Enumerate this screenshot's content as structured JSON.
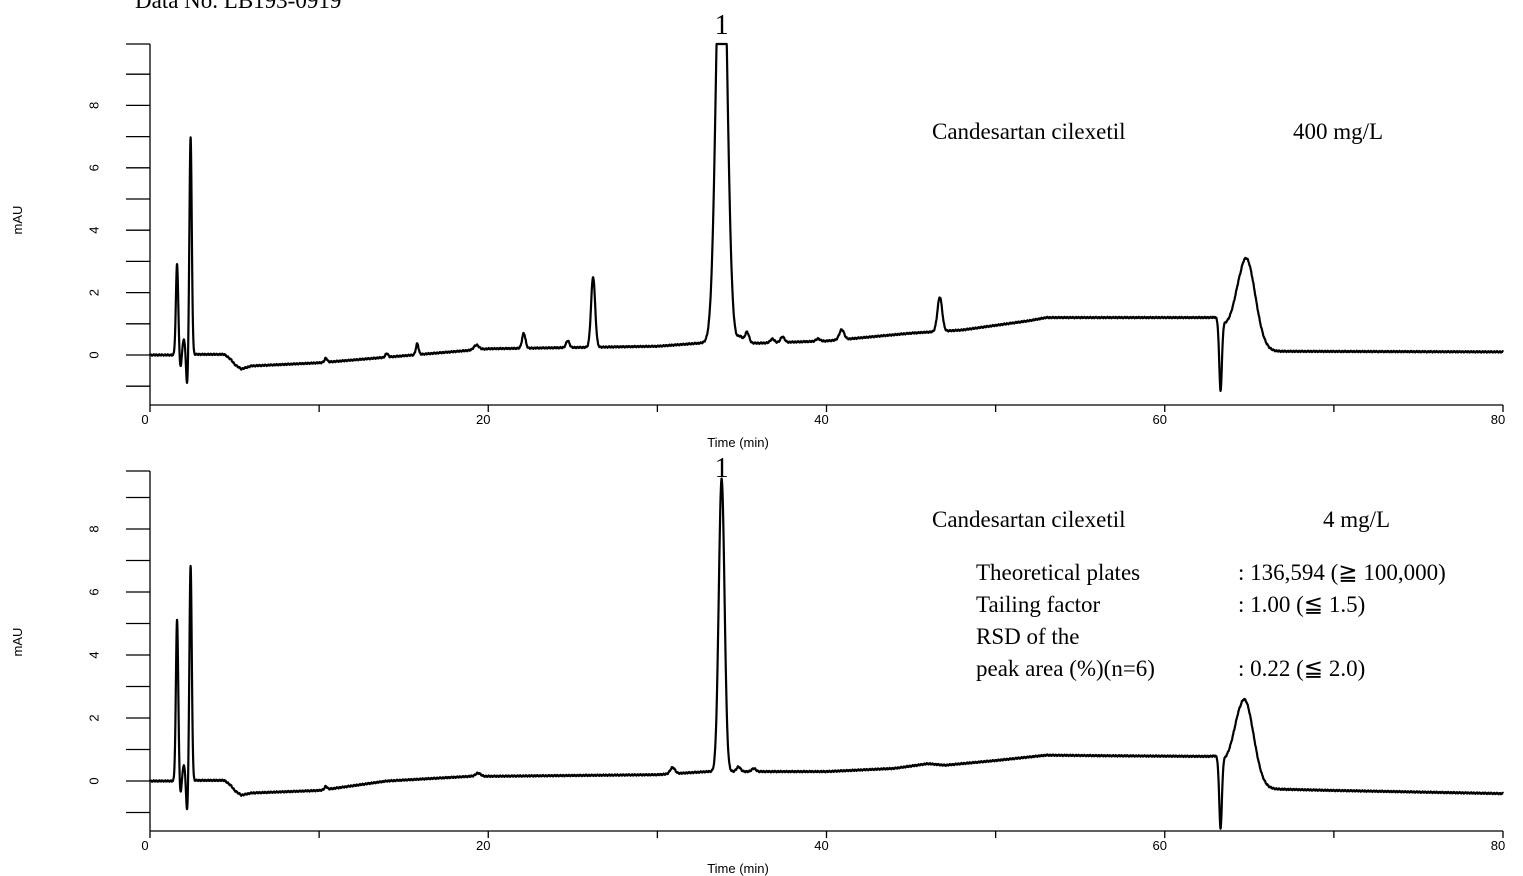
{
  "header": {
    "data_no": "Data No. LB193-0919"
  },
  "chart_data": [
    {
      "type": "line",
      "xlabel": "Time (min)",
      "ylabel": "mAU",
      "xlim": [
        0,
        80
      ],
      "ylim": [
        -1.2,
        10
      ],
      "x_ticks": [
        0,
        20,
        40,
        60,
        80
      ],
      "y_ticks": [
        0,
        2,
        4,
        6,
        8
      ],
      "sample": {
        "name": "Candesartan cilexetil",
        "conc": "400 mg/L"
      },
      "peak_labels": [
        {
          "label": "1",
          "x": 33.8
        }
      ],
      "baseline": [
        [
          0,
          0
        ],
        [
          1.4,
          0
        ],
        [
          2.6,
          0.02
        ],
        [
          4.4,
          0.02
        ],
        [
          4.8,
          -0.15
        ],
        [
          5.0,
          -0.3
        ],
        [
          5.4,
          -0.45
        ],
        [
          6.0,
          -0.35
        ],
        [
          10,
          -0.25
        ],
        [
          20,
          0.2
        ],
        [
          30,
          0.28
        ],
        [
          33,
          0.4
        ],
        [
          36,
          0.38
        ],
        [
          40,
          0.45
        ],
        [
          45,
          0.7
        ],
        [
          48,
          0.8
        ],
        [
          52,
          1.1
        ],
        [
          53,
          1.2
        ],
        [
          57,
          1.2
        ],
        [
          63,
          1.2
        ],
        [
          63.3,
          1.0
        ],
        [
          64.5,
          0.1
        ],
        [
          66,
          0.12
        ],
        [
          80,
          0.1
        ]
      ],
      "peaks": [
        {
          "rt": 1.6,
          "h": 2.9,
          "w": 0.07
        },
        {
          "rt": 1.8,
          "h": -0.4,
          "w": 0.06
        },
        {
          "rt": 2.0,
          "h": 0.5,
          "w": 0.07
        },
        {
          "rt": 2.2,
          "h": -1.0,
          "w": 0.06
        },
        {
          "rt": 2.4,
          "h": 6.95,
          "w": 0.07
        },
        {
          "rt": 10.4,
          "h": 0.13,
          "w": 0.08
        },
        {
          "rt": 14.0,
          "h": 0.12,
          "w": 0.08
        },
        {
          "rt": 15.8,
          "h": 0.35,
          "w": 0.08
        },
        {
          "rt": 19.3,
          "h": 0.15,
          "w": 0.15
        },
        {
          "rt": 22.1,
          "h": 0.48,
          "w": 0.1
        },
        {
          "rt": 24.7,
          "h": 0.22,
          "w": 0.1
        },
        {
          "rt": 26.2,
          "h": 2.25,
          "w": 0.12
        },
        {
          "rt": 33.8,
          "h": 16,
          "w": 0.3
        },
        {
          "rt": 34.9,
          "h": 0.2,
          "w": 0.15
        },
        {
          "rt": 35.3,
          "h": 0.35,
          "w": 0.12
        },
        {
          "rt": 36.8,
          "h": 0.12,
          "w": 0.12
        },
        {
          "rt": 37.4,
          "h": 0.18,
          "w": 0.12
        },
        {
          "rt": 39.5,
          "h": 0.08,
          "w": 0.12
        },
        {
          "rt": 40.9,
          "h": 0.32,
          "w": 0.14
        },
        {
          "rt": 46.7,
          "h": 1.1,
          "w": 0.14
        },
        {
          "rt": 63.3,
          "h": -2.2,
          "w": 0.08
        },
        {
          "rt": 64.8,
          "h": 3.0,
          "w": 0.55
        }
      ],
      "clip_top": 10
    },
    {
      "type": "line",
      "xlabel": "Time (min)",
      "ylabel": "mAU",
      "xlim": [
        0,
        80
      ],
      "ylim": [
        -1.2,
        10
      ],
      "x_ticks": [
        0,
        20,
        40,
        60,
        80
      ],
      "y_ticks": [
        0,
        2,
        4,
        6,
        8
      ],
      "sample": {
        "name": "Candesartan cilexetil",
        "conc": "4 mg/L"
      },
      "peak_labels": [
        {
          "label": "1",
          "x": 33.8
        }
      ],
      "suitability": [
        {
          "label": "Theoretical plates",
          "value": ": 136,594 (≧ 100,000)"
        },
        {
          "label": "Tailing factor",
          "value": ": 1.00 (≦ 1.5)"
        },
        {
          "label": "RSD of the",
          "value": ""
        },
        {
          "label": "peak area (%)(n=6)",
          "value": ": 0.22 (≦ 2.0)"
        }
      ],
      "baseline": [
        [
          0,
          0
        ],
        [
          1.4,
          0
        ],
        [
          2.6,
          0.02
        ],
        [
          4.4,
          0.02
        ],
        [
          4.8,
          -0.15
        ],
        [
          5.0,
          -0.3
        ],
        [
          5.4,
          -0.45
        ],
        [
          6.0,
          -0.38
        ],
        [
          10,
          -0.3
        ],
        [
          14,
          0
        ],
        [
          19,
          0.15
        ],
        [
          20,
          0.15
        ],
        [
          30,
          0.2
        ],
        [
          33,
          0.3
        ],
        [
          36,
          0.3
        ],
        [
          40,
          0.3
        ],
        [
          44,
          0.4
        ],
        [
          46,
          0.55
        ],
        [
          47,
          0.5
        ],
        [
          50,
          0.65
        ],
        [
          53,
          0.82
        ],
        [
          57,
          0.8
        ],
        [
          63,
          0.78
        ],
        [
          63.3,
          0.6
        ],
        [
          64.5,
          -0.2
        ],
        [
          66,
          -0.25
        ],
        [
          70,
          -0.3
        ],
        [
          80,
          -0.4
        ]
      ],
      "peaks": [
        {
          "rt": 1.6,
          "h": 5.1,
          "w": 0.07
        },
        {
          "rt": 1.8,
          "h": -0.4,
          "w": 0.06
        },
        {
          "rt": 2.0,
          "h": 0.5,
          "w": 0.07
        },
        {
          "rt": 2.2,
          "h": -1.0,
          "w": 0.06
        },
        {
          "rt": 2.4,
          "h": 6.8,
          "w": 0.07
        },
        {
          "rt": 10.4,
          "h": 0.1,
          "w": 0.08
        },
        {
          "rt": 19.4,
          "h": 0.1,
          "w": 0.15
        },
        {
          "rt": 30.9,
          "h": 0.2,
          "w": 0.14
        },
        {
          "rt": 33.8,
          "h": 9.3,
          "w": 0.17
        },
        {
          "rt": 34.8,
          "h": 0.15,
          "w": 0.12
        },
        {
          "rt": 35.7,
          "h": 0.1,
          "w": 0.12
        },
        {
          "rt": 63.3,
          "h": -2.2,
          "w": 0.08
        },
        {
          "rt": 64.7,
          "h": 2.8,
          "w": 0.55
        }
      ],
      "clip_top": 10
    }
  ]
}
